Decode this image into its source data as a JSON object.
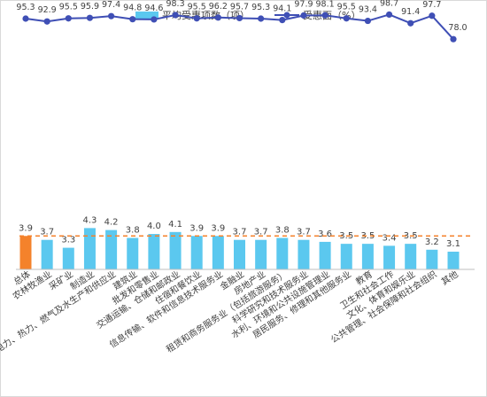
{
  "chart_data": {
    "type": "bar",
    "categories": [
      "总体",
      "农林牧渔业",
      "采矿业",
      "制造业",
      "电力、热力、燃气及水生产和供应业",
      "建筑业",
      "批发和零售业",
      "交通运输、仓储和邮政业",
      "住宿和餐饮业",
      "信息传输、软件和信息技术服务业",
      "金融业",
      "房地产业",
      "租赁和商务服务业（包括旅游服务）",
      "科学研究和技术服务业",
      "水利、环境和公共设施管理业",
      "居民服务、修理和其他服务业",
      "教育",
      "卫生和社会工作",
      "文化、体育和娱乐业",
      "公共管理、社会保障和社会组织",
      "其他"
    ],
    "series": [
      {
        "name": "平均受惠项数（项）",
        "kind": "bar",
        "values": [
          3.9,
          3.7,
          3.3,
          4.3,
          4.2,
          3.8,
          4.0,
          4.1,
          3.9,
          3.9,
          3.7,
          3.7,
          3.8,
          3.7,
          3.6,
          3.5,
          3.5,
          3.4,
          3.5,
          3.2,
          3.1
        ],
        "value_labels": [
          "3.9",
          "3.7",
          "3.3",
          "4.3",
          "4.2",
          "3.8",
          "4.0",
          "4.1",
          "3.9",
          "3.9",
          "3.7",
          "3.7",
          "3.8",
          "3.7",
          "3.6",
          "3.5",
          "3.5",
          "3.4",
          "3.5",
          "3.2",
          "3.1"
        ]
      },
      {
        "name": "受惠面（%）",
        "kind": "line",
        "values": [
          95.3,
          92.9,
          95.5,
          95.9,
          97.4,
          94.8,
          94.6,
          98.3,
          95.5,
          96.2,
          95.7,
          95.3,
          94.1,
          97.9,
          98.1,
          95.5,
          93.4,
          98.7,
          91.4,
          97.7,
          78.0
        ],
        "value_labels": [
          "95.3",
          "92.9",
          "95.5",
          "95.9",
          "97.4",
          "94.8",
          "94.6",
          "98.3",
          "95.5",
          "96.2",
          "95.7",
          "95.3",
          "94.1",
          "97.9",
          "98.1",
          "95.5",
          "93.4",
          "98.7",
          "91.4",
          "97.7",
          "78.0"
        ]
      }
    ],
    "reference_line": {
      "value": 3.9,
      "style": "dashed"
    },
    "highlight_category_index": 0,
    "legend_position": "top-center",
    "grid": false,
    "colors": {
      "bar": "#5bc8ef",
      "bar_highlight": "#f4822b",
      "line": "#3f4fb5",
      "reference": "#f4822b",
      "text": "#404040"
    }
  }
}
